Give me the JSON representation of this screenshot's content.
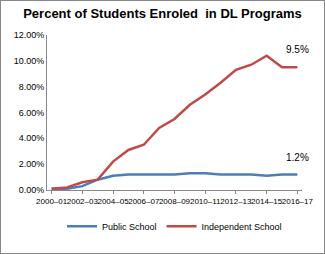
{
  "chart_data": {
    "type": "line",
    "title": "Percent of Students Enroled  in DL Programs",
    "categories": [
      "2000–01",
      null,
      "2002–03",
      null,
      "2004–05",
      null,
      "2006–07",
      null,
      "2008–09",
      null,
      "2010–11",
      null,
      "2012–13",
      null,
      "2014–15",
      null,
      "2016–17"
    ],
    "series": [
      {
        "name": "Public School",
        "color": "#4a7ebb",
        "values": [
          0.1,
          0.1,
          0.3,
          0.8,
          1.1,
          1.2,
          1.2,
          1.2,
          1.2,
          1.3,
          1.3,
          1.2,
          1.2,
          1.2,
          1.1,
          1.2,
          1.2
        ]
      },
      {
        "name": "Independent School",
        "color": "#be4b48",
        "values": [
          0.1,
          0.2,
          0.6,
          0.8,
          2.2,
          3.1,
          3.5,
          4.8,
          5.5,
          6.6,
          7.4,
          8.3,
          9.3,
          9.7,
          10.4,
          9.5,
          9.5
        ]
      }
    ],
    "annotations": [
      {
        "text": "9.5%",
        "series": "Independent School"
      },
      {
        "text": "1.2%",
        "series": "Public School"
      }
    ],
    "ylim": [
      0,
      12
    ],
    "yticks": [
      {
        "value": 0,
        "label": "0.00%"
      },
      {
        "value": 2,
        "label": "2.00%"
      },
      {
        "value": 4,
        "label": "4.00%"
      },
      {
        "value": 6,
        "label": "6.00%"
      },
      {
        "value": 8,
        "label": "8.00%"
      },
      {
        "value": 10,
        "label": "10.00%"
      },
      {
        "value": 12,
        "label": "12.00%"
      }
    ],
    "grid": false,
    "legend": "bottom"
  }
}
